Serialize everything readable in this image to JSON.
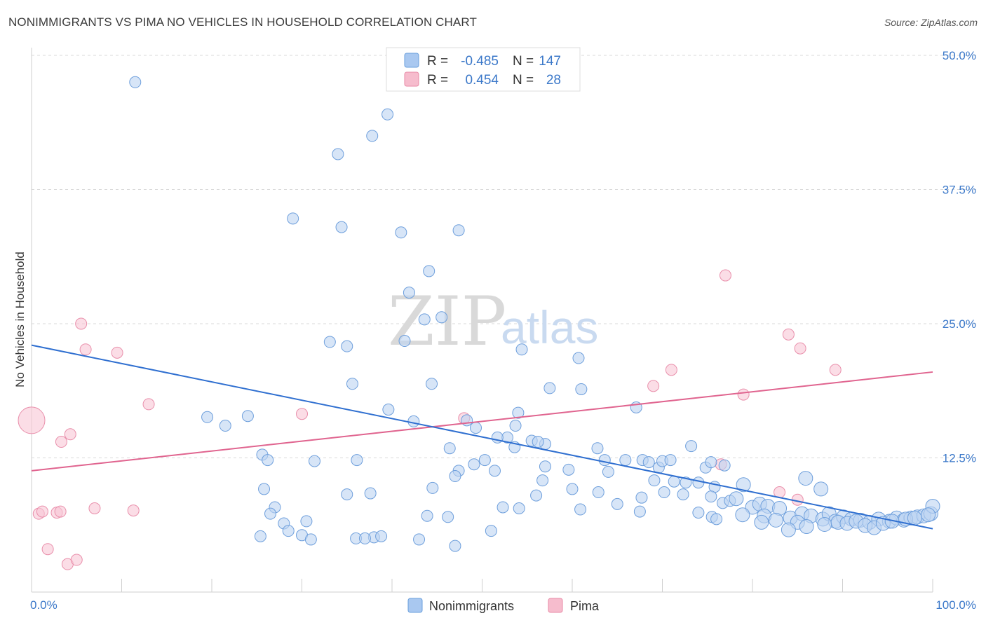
{
  "title": "NONIMMIGRANTS VS PIMA NO VEHICLES IN HOUSEHOLD CORRELATION CHART",
  "source": "Source: ZipAtlas.com",
  "watermark": {
    "zip": "ZIP",
    "atlas": "atlas"
  },
  "legend": {
    "rows": [
      {
        "r_label": "R =",
        "r_value": "-0.485",
        "n_label": "N =",
        "n_value": "147",
        "color": "#a9c8f0",
        "stroke": "#6a9fdc"
      },
      {
        "r_label": "R =",
        "r_value": "0.454",
        "n_label": "N =",
        "n_value": "28",
        "color": "#f6bccd",
        "stroke": "#e88aa6"
      }
    ]
  },
  "colors": {
    "blue_fill": "#bcd4f2",
    "blue_stroke": "#6e9fdc",
    "blue_line": "#2f6fd0",
    "pink_fill": "#f8c7d6",
    "pink_stroke": "#e98fab",
    "pink_line": "#e0648f",
    "grid": "#d8d8d8",
    "axis_text": "#3b78c9"
  },
  "chart_data": {
    "type": "scatter",
    "title": "NONIMMIGRANTS VS PIMA NO VEHICLES IN HOUSEHOLD CORRELATION CHART",
    "xlabel": "",
    "ylabel": "No Vehicles in Household",
    "xlim": [
      0,
      100
    ],
    "ylim": [
      0,
      50
    ],
    "x_ticks": [
      {
        "v": 0,
        "label": "0.0%"
      },
      {
        "v": 100,
        "label": "100.0%"
      }
    ],
    "y_ticks": [
      {
        "v": 12.5,
        "label": "12.5%"
      },
      {
        "v": 25,
        "label": "25.0%"
      },
      {
        "v": 37.5,
        "label": "37.5%"
      },
      {
        "v": 50,
        "label": "50.0%"
      }
    ],
    "grid": true,
    "legend_position": "top-center",
    "series": [
      {
        "name": "Nonimmigrants",
        "trend": {
          "x0": 0,
          "y0": 23.0,
          "x1": 100,
          "y1": 5.9
        },
        "points": [
          [
            11.5,
            47.5
          ],
          [
            39.5,
            44.5
          ],
          [
            37.8,
            42.5
          ],
          [
            34.0,
            40.8
          ],
          [
            29.0,
            34.8
          ],
          [
            34.4,
            34.0
          ],
          [
            41.0,
            33.5
          ],
          [
            47.4,
            33.7
          ],
          [
            44.1,
            29.9
          ],
          [
            41.9,
            27.9
          ],
          [
            45.5,
            25.6
          ],
          [
            43.6,
            25.4
          ],
          [
            41.4,
            23.4
          ],
          [
            33.1,
            23.3
          ],
          [
            35.0,
            22.9
          ],
          [
            54.4,
            22.6
          ],
          [
            60.7,
            21.8
          ],
          [
            35.6,
            19.4
          ],
          [
            44.4,
            19.4
          ],
          [
            57.5,
            19.0
          ],
          [
            61.0,
            18.9
          ],
          [
            39.6,
            17.0
          ],
          [
            54.0,
            16.7
          ],
          [
            67.1,
            17.2
          ],
          [
            19.5,
            16.3
          ],
          [
            24.0,
            16.4
          ],
          [
            21.5,
            15.5
          ],
          [
            42.4,
            15.9
          ],
          [
            48.3,
            16.0
          ],
          [
            49.3,
            15.3
          ],
          [
            53.7,
            15.5
          ],
          [
            52.8,
            14.4
          ],
          [
            55.5,
            14.1
          ],
          [
            57.0,
            13.8
          ],
          [
            56.2,
            14.0
          ],
          [
            51.7,
            14.4
          ],
          [
            46.4,
            13.4
          ],
          [
            53.6,
            13.5
          ],
          [
            62.8,
            13.4
          ],
          [
            25.6,
            12.8
          ],
          [
            26.2,
            12.3
          ],
          [
            31.4,
            12.2
          ],
          [
            36.1,
            12.3
          ],
          [
            50.3,
            12.3
          ],
          [
            63.6,
            12.3
          ],
          [
            65.9,
            12.3
          ],
          [
            67.8,
            12.3
          ],
          [
            68.5,
            12.1
          ],
          [
            69.6,
            11.6
          ],
          [
            70.0,
            12.2
          ],
          [
            73.2,
            13.6
          ],
          [
            70.9,
            12.3
          ],
          [
            74.8,
            11.6
          ],
          [
            75.4,
            12.1
          ],
          [
            76.9,
            11.8
          ],
          [
            57.0,
            11.7
          ],
          [
            49.1,
            11.9
          ],
          [
            47.4,
            11.3
          ],
          [
            59.6,
            11.4
          ],
          [
            64.0,
            11.2
          ],
          [
            51.4,
            11.3
          ],
          [
            47.0,
            10.8
          ],
          [
            56.7,
            10.4
          ],
          [
            69.1,
            10.4
          ],
          [
            71.3,
            10.3
          ],
          [
            72.6,
            10.2
          ],
          [
            74.0,
            10.2
          ],
          [
            75.8,
            9.8
          ],
          [
            79.0,
            10.0
          ],
          [
            85.9,
            10.6
          ],
          [
            87.6,
            9.6
          ],
          [
            25.8,
            9.6
          ],
          [
            35.0,
            9.1
          ],
          [
            37.6,
            9.2
          ],
          [
            44.5,
            9.7
          ],
          [
            56.0,
            9.0
          ],
          [
            60.0,
            9.6
          ],
          [
            62.9,
            9.3
          ],
          [
            65.0,
            8.2
          ],
          [
            67.7,
            8.8
          ],
          [
            70.2,
            9.3
          ],
          [
            72.3,
            9.1
          ],
          [
            75.4,
            8.9
          ],
          [
            76.7,
            8.3
          ],
          [
            77.5,
            8.5
          ],
          [
            78.2,
            8.7
          ],
          [
            80.0,
            7.9
          ],
          [
            80.8,
            8.2
          ],
          [
            81.7,
            8.0
          ],
          [
            83.0,
            7.8
          ],
          [
            27.0,
            7.9
          ],
          [
            52.3,
            7.9
          ],
          [
            26.5,
            7.3
          ],
          [
            28.0,
            6.4
          ],
          [
            30.5,
            6.6
          ],
          [
            43.9,
            7.1
          ],
          [
            46.2,
            7.0
          ],
          [
            54.1,
            7.8
          ],
          [
            60.9,
            7.7
          ],
          [
            67.5,
            7.5
          ],
          [
            74.0,
            7.4
          ],
          [
            75.5,
            7.0
          ],
          [
            78.9,
            7.2
          ],
          [
            81.3,
            7.1
          ],
          [
            82.6,
            6.7
          ],
          [
            84.2,
            6.9
          ],
          [
            85.5,
            7.3
          ],
          [
            86.5,
            7.1
          ],
          [
            87.8,
            6.8
          ],
          [
            88.5,
            7.3
          ],
          [
            89.2,
            6.6
          ],
          [
            90.1,
            7.0
          ],
          [
            91.0,
            6.8
          ],
          [
            92.0,
            6.7
          ],
          [
            93.0,
            6.5
          ],
          [
            94.0,
            6.8
          ],
          [
            95.2,
            6.6
          ],
          [
            96.0,
            6.9
          ],
          [
            96.8,
            6.7
          ],
          [
            97.6,
            6.9
          ],
          [
            98.3,
            7.0
          ],
          [
            99.0,
            7.1
          ],
          [
            99.8,
            7.3
          ],
          [
            100.0,
            8.0
          ],
          [
            85.0,
            6.5
          ],
          [
            86.0,
            6.1
          ],
          [
            88.0,
            6.3
          ],
          [
            89.5,
            6.5
          ],
          [
            90.5,
            6.4
          ],
          [
            91.5,
            6.6
          ],
          [
            92.5,
            6.2
          ],
          [
            93.5,
            6.0
          ],
          [
            94.5,
            6.4
          ],
          [
            95.5,
            6.6
          ],
          [
            97.0,
            6.8
          ],
          [
            98.0,
            6.9
          ],
          [
            99.5,
            7.2
          ],
          [
            84.0,
            5.8
          ],
          [
            81.0,
            6.5
          ],
          [
            76.0,
            6.8
          ],
          [
            30.0,
            5.3
          ],
          [
            28.5,
            5.7
          ],
          [
            25.4,
            5.2
          ],
          [
            36.0,
            5.0
          ],
          [
            38.0,
            5.1
          ],
          [
            43.0,
            4.9
          ],
          [
            47.0,
            4.3
          ],
          [
            51.0,
            5.7
          ],
          [
            38.8,
            5.2
          ],
          [
            31.0,
            4.9
          ],
          [
            37.0,
            5.0
          ]
        ]
      },
      {
        "name": "Pima",
        "trend": {
          "x0": 0,
          "y0": 11.3,
          "x1": 100,
          "y1": 20.5
        },
        "points": [
          [
            0.0,
            16.0
          ],
          [
            5.5,
            25.0
          ],
          [
            6.0,
            22.6
          ],
          [
            9.5,
            22.3
          ],
          [
            13.0,
            17.5
          ],
          [
            3.3,
            14.0
          ],
          [
            4.3,
            14.7
          ],
          [
            30.0,
            16.6
          ],
          [
            48.0,
            16.2
          ],
          [
            0.8,
            7.3
          ],
          [
            1.2,
            7.5
          ],
          [
            2.8,
            7.4
          ],
          [
            3.2,
            7.5
          ],
          [
            7.0,
            7.8
          ],
          [
            11.3,
            7.6
          ],
          [
            1.8,
            4.0
          ],
          [
            4.0,
            2.6
          ],
          [
            5.0,
            3.0
          ],
          [
            77.0,
            29.5
          ],
          [
            84.0,
            24.0
          ],
          [
            85.3,
            22.7
          ],
          [
            71.0,
            20.7
          ],
          [
            89.2,
            20.7
          ],
          [
            69.0,
            19.2
          ],
          [
            79.0,
            18.4
          ],
          [
            76.5,
            11.9
          ],
          [
            83.0,
            9.3
          ],
          [
            85.0,
            8.6
          ]
        ]
      }
    ]
  },
  "bottom_legend": [
    {
      "label": "Nonimmigrants"
    },
    {
      "label": "Pima"
    }
  ]
}
